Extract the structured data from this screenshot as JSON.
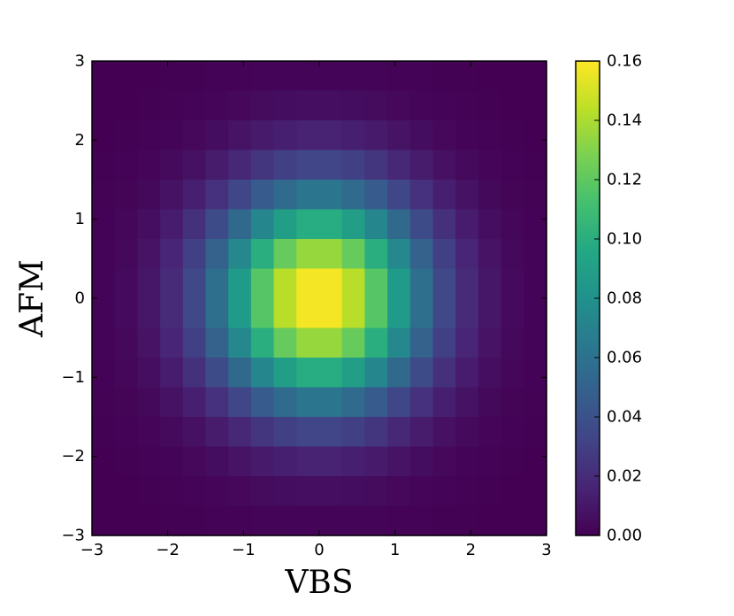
{
  "chart_data": {
    "type": "heatmap",
    "title": "",
    "xlabel": "VBS",
    "ylabel": "AFM",
    "xlim": [
      -3,
      3
    ],
    "ylim": [
      -3,
      3
    ],
    "grid": false,
    "x_tick_labels": [
      "−3",
      "−2",
      "−1",
      "0",
      "1",
      "2",
      "3"
    ],
    "y_tick_labels": [
      "−3",
      "−2",
      "−1",
      "0",
      "1",
      "2",
      "3"
    ],
    "colorbar": {
      "colormap": "viridis",
      "range": [
        0.0,
        0.16
      ],
      "tick_labels": [
        "0.00",
        "0.02",
        "0.04",
        "0.06",
        "0.08",
        "0.10",
        "0.12",
        "0.14",
        "0.16"
      ]
    },
    "grid_size": [
      20,
      16
    ],
    "x_centers": [
      -2.85,
      -2.55,
      -2.25,
      -1.95,
      -1.65,
      -1.35,
      -1.05,
      -0.75,
      -0.45,
      -0.15,
      0.15,
      0.45,
      0.75,
      1.05,
      1.35,
      1.65,
      1.95,
      2.25,
      2.55,
      2.85
    ],
    "y_centers": [
      2.8125,
      2.4375,
      2.0625,
      1.6875,
      1.3125,
      0.9375,
      0.5625,
      0.1875,
      -0.1875,
      -0.5625,
      -0.9375,
      -1.3125,
      -1.6875,
      -2.0625,
      -2.4375,
      -2.8125
    ],
    "value_function": "0.163 * exp(-(x^2 + y^2) / 1.8)",
    "peak_value": 0.163,
    "peak_location": [
      0,
      0
    ]
  }
}
